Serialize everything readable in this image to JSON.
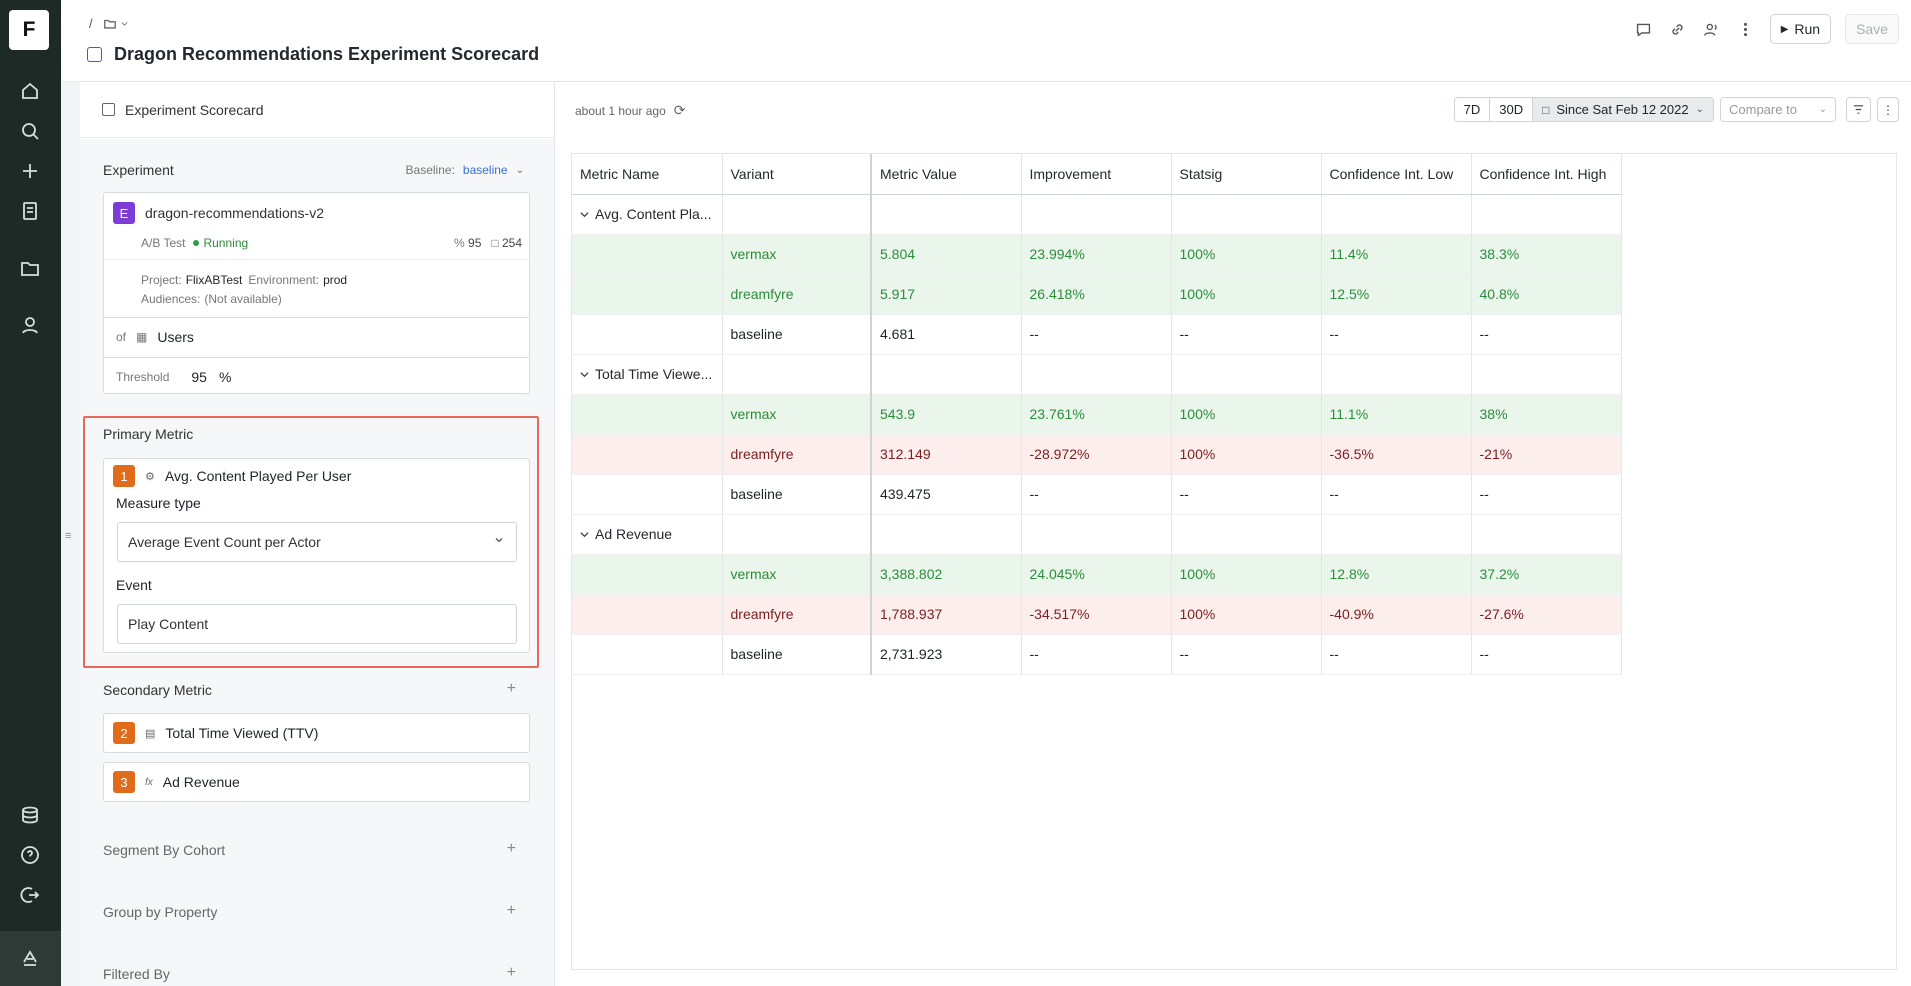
{
  "app": {
    "logo_letter": "F"
  },
  "header": {
    "breadcrumb_sep": "/",
    "title": "Dragon Recommendations Experiment Scorecard",
    "run_label": "Run",
    "save_label": "Save"
  },
  "left": {
    "panel_title": "Experiment Scorecard",
    "experiment": {
      "label": "Experiment",
      "baseline_label": "Baseline:",
      "baseline_value": "baseline",
      "badge": "E",
      "name": "dragon-recommendations-v2",
      "type": "A/B Test",
      "status": "Running",
      "stat1": "95",
      "stat2": "254",
      "project_label": "Project:",
      "project": "FlixABTest",
      "env_label": "Environment:",
      "env": "prod",
      "audiences_label": "Audiences:",
      "audiences": "(Not available)",
      "of_label": "of",
      "of_value": "Users",
      "threshold_label": "Threshold",
      "threshold_value": "95",
      "threshold_unit": "%"
    },
    "primary": {
      "label": "Primary Metric",
      "badge": "1",
      "name": "Avg. Content Played Per User",
      "measure_label": "Measure type",
      "measure_value": "Average Event Count per Actor",
      "event_label": "Event",
      "event_value": "Play Content"
    },
    "secondary": {
      "label": "Secondary Metric",
      "items": [
        {
          "badge": "2",
          "name": "Total Time Viewed (TTV)"
        },
        {
          "badge": "3",
          "name": "Ad Revenue",
          "prefix": "fx"
        }
      ]
    },
    "segment_label": "Segment By Cohort",
    "group_label": "Group by Property",
    "filter_label": "Filtered By"
  },
  "right": {
    "updated": "about 1 hour ago",
    "range_7d": "7D",
    "range_30d": "30D",
    "since": "Since Sat Feb 12 2022",
    "compare_placeholder": "Compare to"
  },
  "table": {
    "columns": [
      "Metric Name",
      "Variant",
      "Metric Value",
      "Improvement",
      "Statsig",
      "Confidence Int. Low",
      "Confidence Int. High"
    ],
    "groups": [
      {
        "name": "Avg. Content Pla...",
        "rows": [
          {
            "variant": "vermax",
            "value": "5.804",
            "improvement": "23.994%",
            "statsig": "100%",
            "low": "11.4%",
            "high": "38.3%",
            "tone": "pos"
          },
          {
            "variant": "dreamfyre",
            "value": "5.917",
            "improvement": "26.418%",
            "statsig": "100%",
            "low": "12.5%",
            "high": "40.8%",
            "tone": "pos"
          },
          {
            "variant": "baseline",
            "value": "4.681",
            "improvement": "--",
            "statsig": "--",
            "low": "--",
            "high": "--",
            "tone": "none"
          }
        ]
      },
      {
        "name": "Total Time Viewe...",
        "rows": [
          {
            "variant": "vermax",
            "value": "543.9",
            "improvement": "23.761%",
            "statsig": "100%",
            "low": "11.1%",
            "high": "38%",
            "tone": "pos"
          },
          {
            "variant": "dreamfyre",
            "value": "312.149",
            "improvement": "-28.972%",
            "statsig": "100%",
            "low": "-36.5%",
            "high": "-21%",
            "tone": "neg"
          },
          {
            "variant": "baseline",
            "value": "439.475",
            "improvement": "--",
            "statsig": "--",
            "low": "--",
            "high": "--",
            "tone": "none"
          }
        ]
      },
      {
        "name": "Ad Revenue",
        "rows": [
          {
            "variant": "vermax",
            "value": "3,388.802",
            "improvement": "24.045%",
            "statsig": "100%",
            "low": "12.8%",
            "high": "37.2%",
            "tone": "pos"
          },
          {
            "variant": "dreamfyre",
            "value": "1,788.937",
            "improvement": "-34.517%",
            "statsig": "100%",
            "low": "-40.9%",
            "high": "-27.6%",
            "tone": "neg"
          },
          {
            "variant": "baseline",
            "value": "2,731.923",
            "improvement": "--",
            "statsig": "--",
            "low": "--",
            "high": "--",
            "tone": "none"
          }
        ]
      }
    ]
  }
}
